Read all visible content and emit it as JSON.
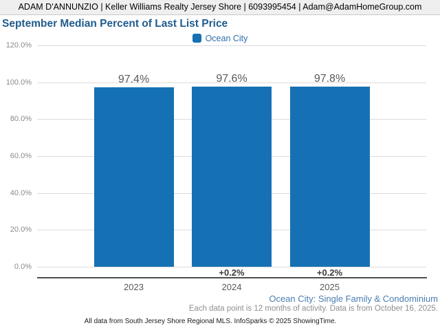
{
  "header": {
    "contact_line": "ADAM D'ANNUNZIO | Keller Williams Realty Jersey Shore | 6093995454 | Adam@AdamHomeGroup.com"
  },
  "title": "September Median Percent of Last List Price",
  "legend": {
    "label": "Ocean City",
    "color": "#1571b4"
  },
  "chart_data": {
    "type": "bar",
    "title": "September Median Percent of Last List Price",
    "categories": [
      "2023",
      "2024",
      "2025"
    ],
    "series": [
      {
        "name": "Ocean City",
        "values": [
          97.4,
          97.6,
          97.8
        ]
      }
    ],
    "value_labels": [
      "97.4%",
      "97.6%",
      "97.8%"
    ],
    "delta_labels": [
      "",
      "+0.2%",
      "+0.2%"
    ],
    "xlabel": "",
    "ylabel": "",
    "ylim": [
      0,
      120
    ],
    "ytick_step": 20,
    "ytick_labels": [
      "0.0%",
      "20.0%",
      "40.0%",
      "60.0%",
      "80.0%",
      "100.0%",
      "120.0%"
    ],
    "bar_color": "#1571b4",
    "grid": true,
    "legend_position": "top-center"
  },
  "footer": {
    "segment_label": "Ocean City: Single Family & Condominium",
    "note": "Each data point is 12 months of activity. Data is from October 16, 2025.",
    "attribution": "All data from South Jersey Shore Regional MLS. InfoSparks © 2025 ShowingTime."
  },
  "colors": {
    "bar": "#1571b4",
    "title_text": "#1f5c8d",
    "legend_text": "#2e6fae",
    "segment_text": "#4a7db3",
    "grid": "#dcdcdc",
    "axis": "#4d4d4d",
    "ytick_text": "#8a8a8a",
    "value_text": "#595959",
    "delta_text": "#3a3a3a",
    "header_bg": "#efefef"
  }
}
